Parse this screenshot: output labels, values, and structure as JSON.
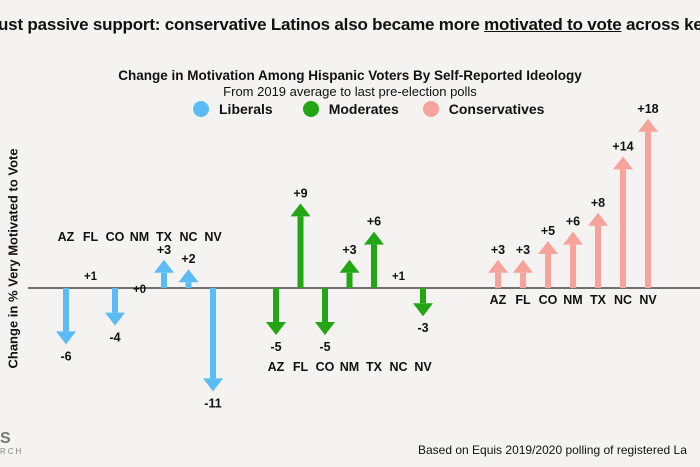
{
  "headline": {
    "pre": "ust passive support: conservative Latinos also became more ",
    "underlined": "motivated to vote",
    "post": " across key"
  },
  "footer": "Based on Equis 2019/2020 polling of registered La",
  "logo": {
    "mark": "S",
    "sub": "RCH"
  },
  "chart_data": {
    "type": "bar",
    "title": "Change in Motivation Among Hispanic Voters By Self-Reported Ideology",
    "subtitle": "From 2019 average to last pre-election polls",
    "ylabel": "Change in % Very Motivated to Vote",
    "categories": [
      "AZ",
      "FL",
      "CO",
      "NM",
      "TX",
      "NC",
      "NV"
    ],
    "legend_placement": "top",
    "grid": false,
    "series": [
      {
        "name": "Liberals",
        "color": "#5bbcf5",
        "values": [
          -6,
          1,
          -4,
          0,
          3,
          2,
          -11
        ],
        "labels": [
          "-6",
          "+1",
          "-4",
          "+0",
          "+3",
          "+2",
          "-11"
        ]
      },
      {
        "name": "Moderates",
        "color": "#22a614",
        "values": [
          -5,
          9,
          -5,
          3,
          6,
          1,
          -3
        ],
        "labels": [
          "-5",
          "+9",
          "-5",
          "+3",
          "+6",
          "+1",
          "-3"
        ]
      },
      {
        "name": "Conservatives",
        "color": "#f7a29b",
        "values": [
          3,
          3,
          5,
          6,
          8,
          14,
          18
        ],
        "labels": [
          "+3",
          "+3",
          "+5",
          "+6",
          "+8",
          "+14",
          "+18"
        ]
      }
    ]
  }
}
